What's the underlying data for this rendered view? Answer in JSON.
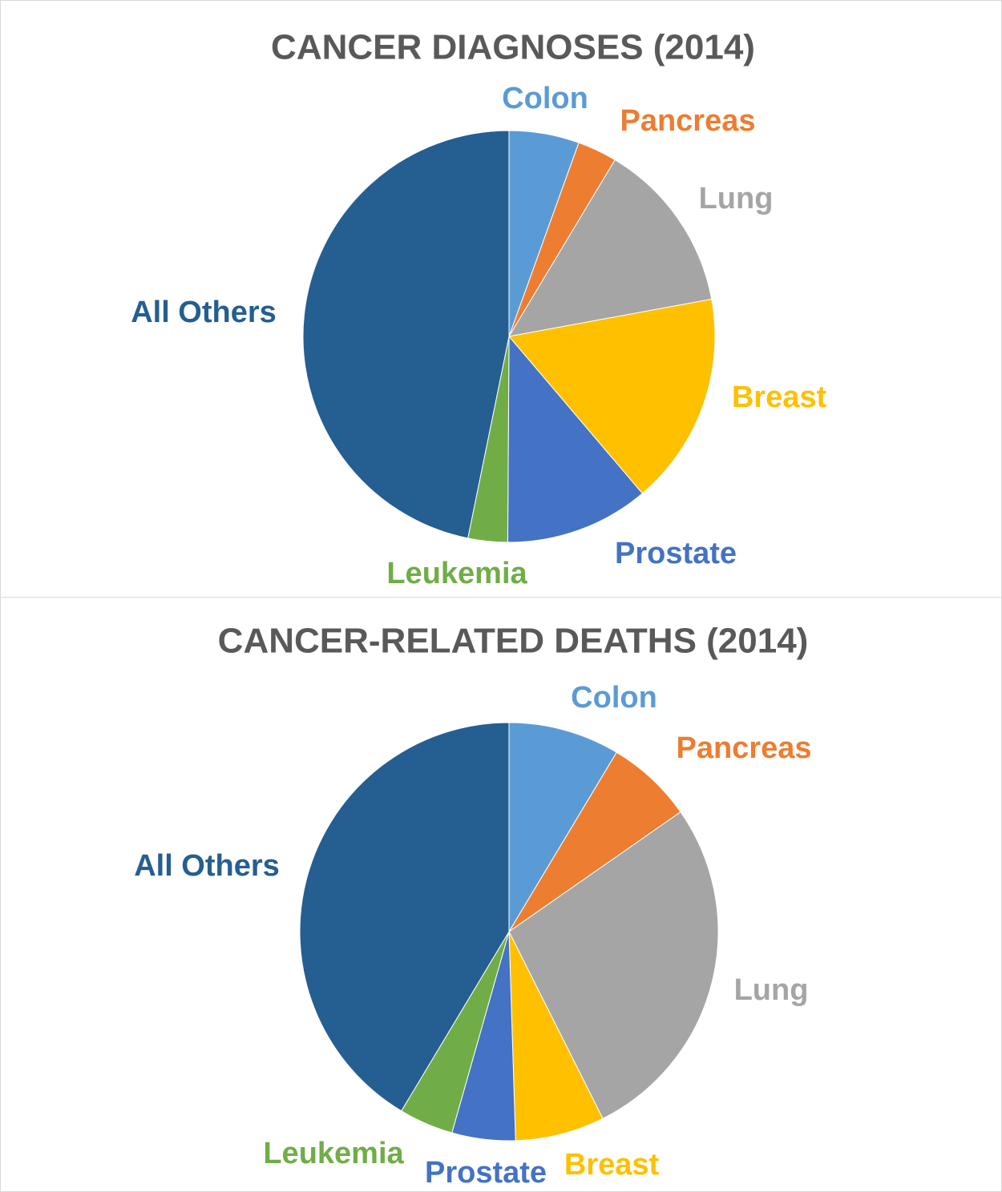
{
  "chart_data": [
    {
      "type": "pie",
      "title": "CANCER DIAGNOSES (2014)",
      "categories": [
        "Colon",
        "Pancreas",
        "Lung",
        "Breast",
        "Prostate",
        "Leukemia",
        "All Others"
      ],
      "values": [
        5.5,
        3.1,
        13.5,
        16.7,
        11.3,
        3.1,
        46.8
      ],
      "colors": [
        "#5b9bd5",
        "#ed7d31",
        "#a5a5a5",
        "#ffc000",
        "#4472c4",
        "#70ad47",
        "#255e91"
      ]
    },
    {
      "type": "pie",
      "title": "CANCER-RELATED DEATHS (2014)",
      "categories": [
        "Colon",
        "Pancreas",
        "Lung",
        "Breast",
        "Prostate",
        "Leukemia",
        "All Others"
      ],
      "values": [
        8.6,
        6.7,
        27.3,
        6.9,
        4.9,
        4.2,
        41.4
      ],
      "colors": [
        "#5b9bd5",
        "#ed7d31",
        "#a5a5a5",
        "#ffc000",
        "#4472c4",
        "#70ad47",
        "#255e91"
      ]
    }
  ]
}
